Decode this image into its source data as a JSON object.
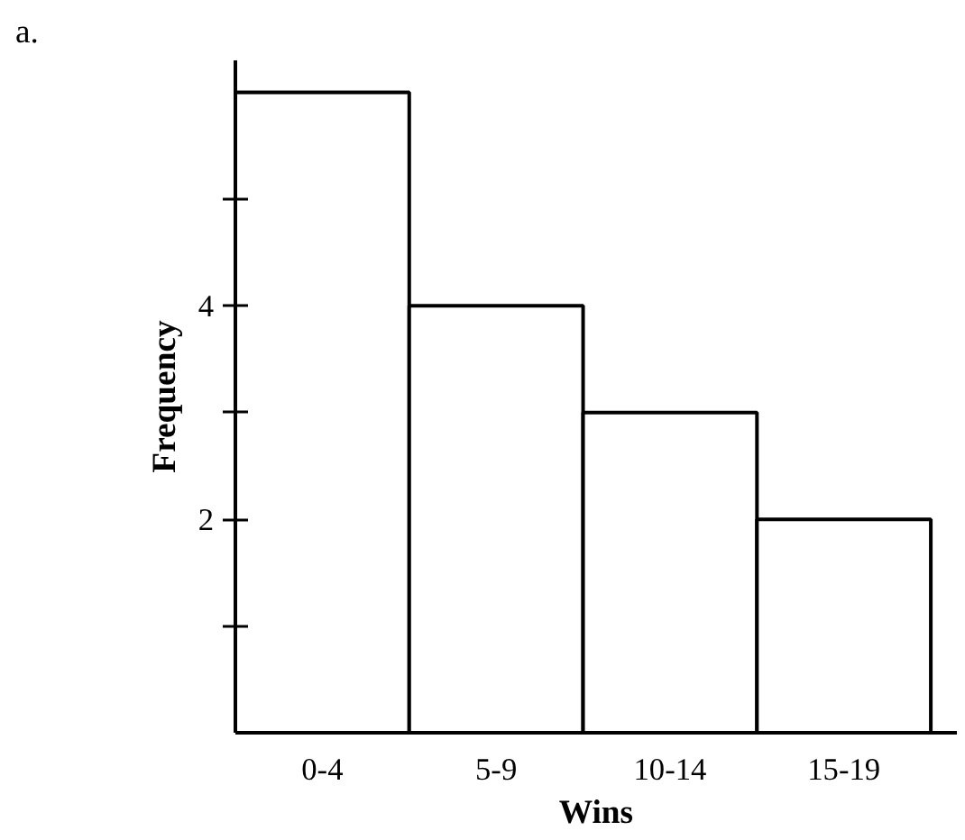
{
  "chart_data": {
    "type": "bar",
    "xlabel": "Wins",
    "ylabel": "Frequency",
    "categories": [
      "0-4",
      "5-9",
      "10-14",
      "15-19"
    ],
    "values": [
      6,
      4,
      3,
      2
    ],
    "color": "#ffffff",
    "ylim": [
      0,
      6.3
    ],
    "yticks": [
      {
        "value": 1,
        "label": null
      },
      2,
      {
        "value": 3,
        "label": null
      },
      4,
      {
        "value": 5,
        "label": null
      }
    ],
    "grid": false,
    "annotations": [
      "a."
    ]
  }
}
